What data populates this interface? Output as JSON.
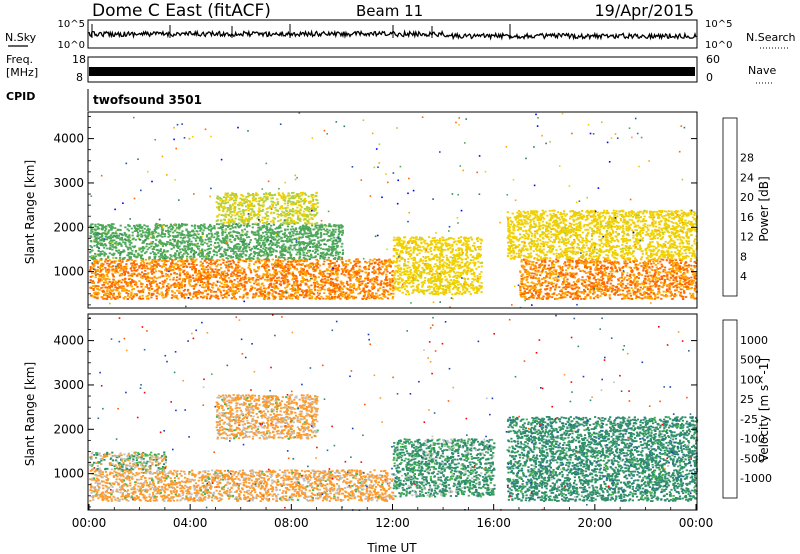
{
  "header": {
    "title": "Dome C East (fitACF)",
    "beam": "Beam 11",
    "date": "19/Apr/2015"
  },
  "nsky_panel": {
    "left_label": "N.Sky",
    "right_label": "N.Search",
    "left_ticks": [
      "10^5",
      "10^0"
    ],
    "right_ticks": [
      "10^5",
      "10^0"
    ]
  },
  "freq_panel": {
    "left_label_1": "Freq.",
    "left_label_2": "[MHz]",
    "right_label": "Nave",
    "left_ticks": [
      "18",
      "8"
    ],
    "right_ticks": [
      "60",
      "0"
    ]
  },
  "cpid": {
    "label": "CPID",
    "value": "twofsound 3501"
  },
  "colors": {
    "power": [
      "#0000ff",
      "#1f4fb8",
      "#2f7f5a",
      "#4ea85a",
      "#a8d040",
      "#f0d000",
      "#ffa500",
      "#ff6600",
      "#ff2000"
    ],
    "velocity": [
      "#ff0000",
      "#ff5a00",
      "#ff9a2a",
      "#c0c0c0",
      "#c0c0c0",
      "#48b84e",
      "#2f8f6a",
      "#2a6a9a",
      "#1a3ab8"
    ]
  },
  "chart_data": [
    {
      "type": "heatmap",
      "name": "power",
      "xlabel": "",
      "ylabel": "Slant Range [km]",
      "x_range": [
        "00:00",
        "24:00"
      ],
      "ylim": [
        180,
        4600
      ],
      "y_ticks": [
        1000,
        2000,
        3000,
        4000
      ],
      "colorbar": {
        "label": "Power [dB]",
        "levels": [
          0,
          4,
          8,
          12,
          16,
          20,
          24,
          28,
          32
        ],
        "tick_labels": [
          "4",
          "8",
          "12",
          "16",
          "20",
          "24",
          "28"
        ]
      },
      "regions": [
        {
          "t0": 0.0,
          "t1": 12.0,
          "r0": 400,
          "r1": 1300,
          "value": 28
        },
        {
          "t0": 0.0,
          "t1": 10.0,
          "r0": 1300,
          "r1": 2100,
          "value": 14
        },
        {
          "t0": 5.0,
          "t1": 9.0,
          "r0": 2100,
          "r1": 2800,
          "value": 20
        },
        {
          "t0": 12.0,
          "t1": 15.5,
          "r0": 500,
          "r1": 1800,
          "value": 22
        },
        {
          "t0": 17.0,
          "t1": 24.0,
          "r0": 400,
          "r1": 1300,
          "value": 28
        },
        {
          "t0": 16.5,
          "t1": 24.0,
          "r0": 1300,
          "r1": 2400,
          "value": 22
        }
      ]
    },
    {
      "type": "heatmap",
      "name": "velocity",
      "xlabel": "Time UT",
      "ylabel": "Slant Range [km]",
      "x_range": [
        "00:00",
        "24:00"
      ],
      "x_ticks": [
        "00:00",
        "04:00",
        "08:00",
        "12:00",
        "16:00",
        "20:00",
        "00:00"
      ],
      "ylim": [
        180,
        4600
      ],
      "y_ticks": [
        1000,
        2000,
        3000,
        4000
      ],
      "colorbar": {
        "label": "Velocity [m s^-1]",
        "levels": [
          -2000,
          -1000,
          -500,
          -100,
          -25,
          25,
          100,
          500,
          1000,
          2000
        ],
        "tick_labels": [
          "-1000",
          "-500",
          "-100",
          "-25",
          "25",
          "100",
          "500",
          "1000"
        ]
      },
      "regions": [
        {
          "t0": 0.0,
          "t1": 12.0,
          "r0": 400,
          "r1": 1100,
          "value": -200
        },
        {
          "t0": 0.0,
          "t1": 3.0,
          "r0": 1100,
          "r1": 1500,
          "value": 0
        },
        {
          "t0": 5.0,
          "t1": 9.0,
          "r0": 1800,
          "r1": 2800,
          "value": -200
        },
        {
          "t0": 12.0,
          "t1": 16.0,
          "r0": 500,
          "r1": 1800,
          "value": 200
        },
        {
          "t0": 16.5,
          "t1": 24.0,
          "r0": 400,
          "r1": 2300,
          "value": 300
        }
      ]
    }
  ]
}
